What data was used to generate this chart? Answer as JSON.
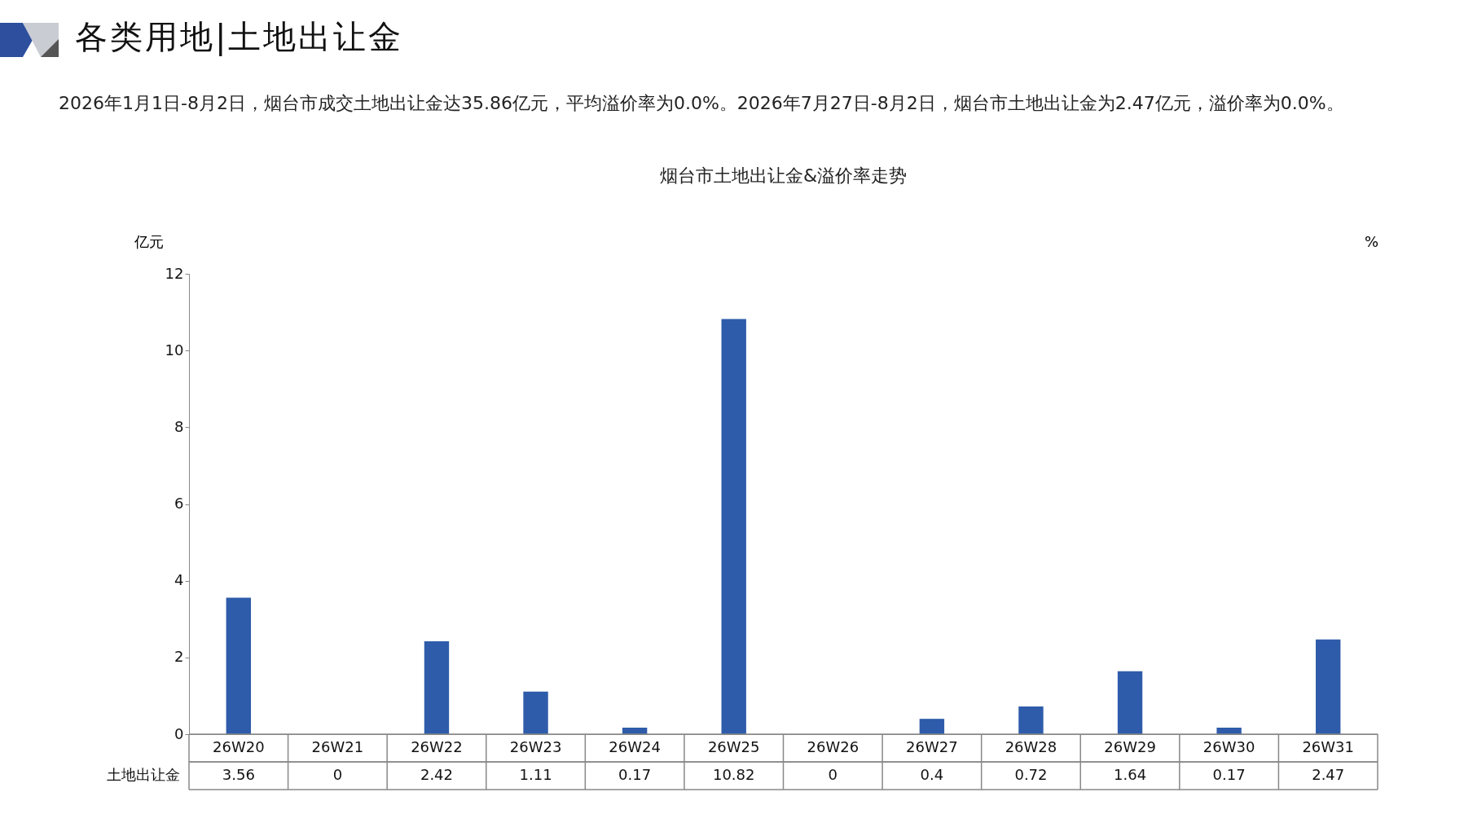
{
  "chart_data": {
    "type": "bar",
    "title": "烟台市土地出让金&溢价率走势",
    "subtitle": "2026年1月1日-8月2日，烟台市成交土地出让金达35.86亿元，平均溢价率为0.0%。2026年7月27日-8月2日，烟台市土地出让金为2.47亿元，溢价率为0.0%。",
    "annotations": [
      "各类用地|土地出让金"
    ],
    "ylabel": "亿元",
    "y2label": "%",
    "categories": [
      "26W20",
      "26W21",
      "26W22",
      "26W23",
      "26W24",
      "26W25",
      "26W26",
      "26W27",
      "26W28",
      "26W29",
      "26W30",
      "26W31"
    ],
    "series": [
      {
        "name": "土地出让金",
        "color": "#2e5caa",
        "values": [
          3.56,
          0,
          2.42,
          1.11,
          0.17,
          10.82,
          0,
          0.4,
          0.72,
          1.64,
          0.17,
          2.47
        ]
      }
    ],
    "ylim": [
      0,
      12
    ],
    "yticks": [
      0,
      2,
      4,
      6,
      8,
      10,
      12
    ],
    "data_labels": true
  }
}
